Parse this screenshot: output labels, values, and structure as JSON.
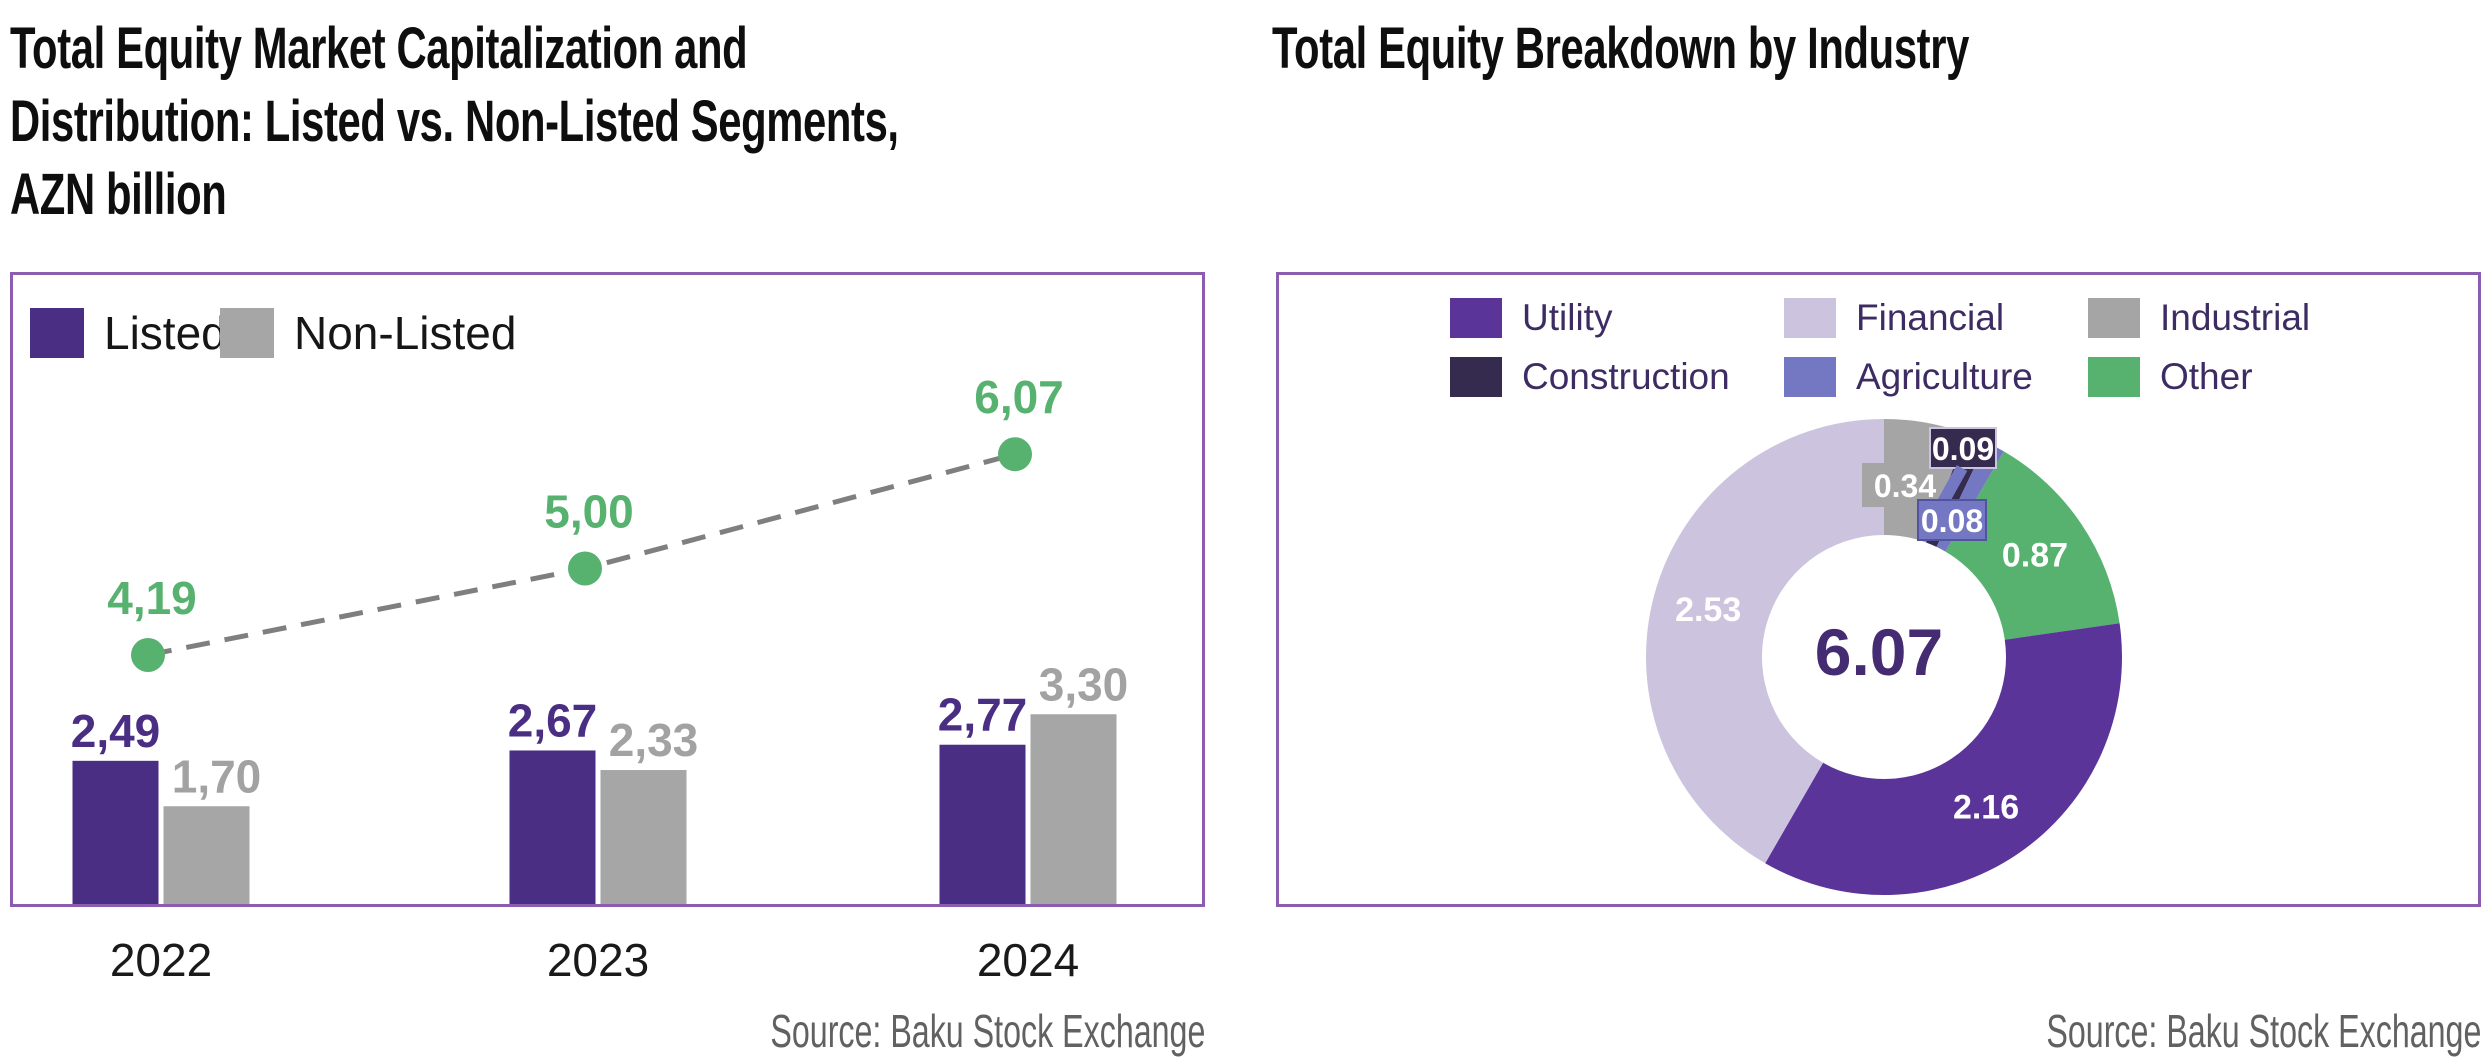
{
  "frame_border_color": "#8B5CB0",
  "chart_data": [
    {
      "id": "market_cap",
      "type": "bar",
      "title": "Total Equity Market Capitalization and\nDistribution: Listed vs. Non-Listed Segments,\nAZN billion",
      "categories": [
        "2022",
        "2023",
        "2024"
      ],
      "series": [
        {
          "name": "Listed",
          "color": "#4A2E83",
          "values": [
            2.49,
            2.67,
            2.77
          ],
          "labels": [
            "2,49",
            "2,67",
            "2,77"
          ],
          "label_color": "#4A2E83"
        },
        {
          "name": "Non-Listed",
          "color": "#A6A6A6",
          "values": [
            1.7,
            2.33,
            3.3
          ],
          "labels": [
            "1,70",
            "2,33",
            "3,30"
          ],
          "label_color": "#A2A2A2"
        }
      ],
      "totals_line": {
        "name": "Total",
        "values": [
          4.19,
          5.0,
          6.07
        ],
        "labels": [
          "4,19",
          "5,00",
          "6,07"
        ],
        "marker_color": "#57B16F",
        "connector_color": "#7F7F7F",
        "connector_style": "dashed"
      },
      "ylabel": "",
      "grid": false,
      "axis_labels_position": "below-frame",
      "legend_position": "top-left-inside",
      "source": "Source: Baku Stock Exchange"
    },
    {
      "id": "industry_breakdown",
      "type": "pie",
      "donut": true,
      "title": "Total Equity Breakdown by Industry",
      "center_label": "6.07",
      "center_label_color": "#452C72",
      "start_angle_deg": 0,
      "direction": "clockwise",
      "slices": [
        {
          "name": "Industrial",
          "value": 0.34,
          "label": "0.34",
          "color": "#A5A5A5",
          "label_style": "callout"
        },
        {
          "name": "Construction",
          "value": 0.09,
          "label": "0.09",
          "color": "#342B4F",
          "label_style": "callout"
        },
        {
          "name": "Agriculture",
          "value": 0.08,
          "label": "0.08",
          "color": "#7478C2",
          "label_style": "callout"
        },
        {
          "name": "Other",
          "value": 0.87,
          "label": "0.87",
          "color": "#57B16F",
          "label_style": "inside"
        },
        {
          "name": "Utility",
          "value": 2.16,
          "label": "2.16",
          "color": "#5B3499",
          "label_style": "inside"
        },
        {
          "name": "Financial",
          "value": 2.53,
          "label": "2.53",
          "color": "#CCC4DE",
          "label_style": "inside"
        }
      ],
      "legend_order": [
        "Utility",
        "Financial",
        "Industrial",
        "Construction",
        "Agriculture",
        "Other"
      ],
      "legend_position": "top-inside",
      "source": "Source: Baku Stock Exchange"
    }
  ]
}
